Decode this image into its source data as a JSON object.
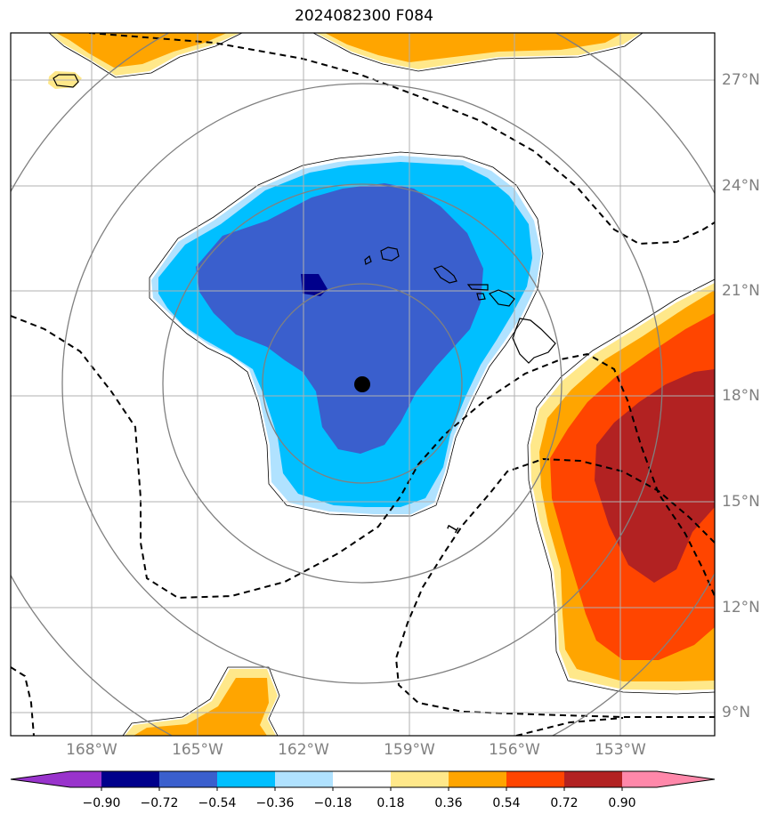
{
  "title": "2024082300 F084",
  "map": {
    "lat_labels": [
      "27°N",
      "24°N",
      "21°N",
      "18°N",
      "15°N",
      "12°N",
      "9°N"
    ],
    "lon_labels": [
      "168°W",
      "165°W",
      "162°W",
      "159°W",
      "156°W",
      "153°W"
    ],
    "center_marker": {
      "lon": -160.0,
      "lat": 18.3
    },
    "range_rings": 4,
    "contour_label": "1"
  },
  "colorbar": {
    "labels": [
      "−0.90",
      "−0.72",
      "−0.54",
      "−0.36",
      "−0.18",
      "0.18",
      "0.36",
      "0.54",
      "0.72",
      "0.90"
    ],
    "colors": [
      "#9933cc",
      "#00008b",
      "#3a5fcd",
      "#00bfff",
      "#b0e2ff",
      "#ffffff",
      "#ffe88a",
      "#ffa500",
      "#ff4500",
      "#b22222",
      "#ff88aa"
    ]
  }
}
